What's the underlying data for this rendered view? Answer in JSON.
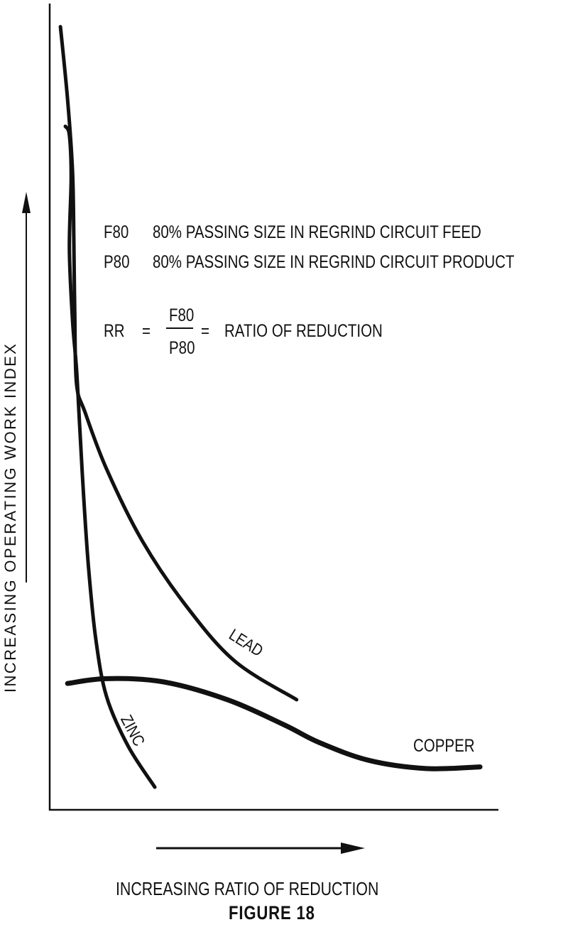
{
  "chart_data": {
    "type": "line",
    "title": "",
    "caption": "FIGURE 18",
    "xlabel": "INCREASING RATIO OF REDUCTION",
    "ylabel": "INCREASING OPERATING WORK INDEX",
    "xlim": [
      0,
      100
    ],
    "ylim": [
      0,
      100
    ],
    "axis_ticks": "none",
    "grid": false,
    "legend_placement": "inline labels",
    "definitions": [
      {
        "term": "F80",
        "text": "80% PASSING SIZE IN REGRIND CIRCUIT FEED"
      },
      {
        "term": "P80",
        "text": "80% PASSING SIZE IN REGRIND CIRCUIT PRODUCT"
      }
    ],
    "formula": {
      "lhs": "RR",
      "eq1": "=",
      "numerator": "F80",
      "denominator": "P80",
      "eq2": "=",
      "rhs": "RATIO OF REDUCTION"
    },
    "series": [
      {
        "name": "LEAD",
        "color": "#111111",
        "points": [
          [
            2.4,
            96.7
          ],
          [
            4,
            87.7
          ],
          [
            5.1,
            78.9
          ],
          [
            5.4,
            70.2
          ],
          [
            5.6,
            61.4
          ],
          [
            6,
            52.6
          ],
          [
            7.9,
            49.1
          ],
          [
            12.7,
            42.1
          ],
          [
            20.6,
            33.3
          ],
          [
            30.2,
            25.4
          ],
          [
            41.3,
            18.4
          ],
          [
            55.2,
            13.6
          ]
        ]
      },
      {
        "name": "ZINC",
        "color": "#111111",
        "points": [
          [
            3.5,
            84.4
          ],
          [
            4.4,
            83.3
          ],
          [
            4.8,
            78.1
          ],
          [
            4.4,
            69.3
          ],
          [
            5.1,
            60.5
          ],
          [
            6,
            54.4
          ],
          [
            6.7,
            47.4
          ],
          [
            7.6,
            38.6
          ],
          [
            8.7,
            29.8
          ],
          [
            10.3,
            21.1
          ],
          [
            12.7,
            14
          ],
          [
            17.5,
            7.9
          ],
          [
            23.5,
            2.8
          ]
        ]
      },
      {
        "name": "COPPER",
        "color": "#111111",
        "points": [
          [
            4,
            15.6
          ],
          [
            12.7,
            16.2
          ],
          [
            25.4,
            15.8
          ],
          [
            39.7,
            13.6
          ],
          [
            52.4,
            10.5
          ],
          [
            60.3,
            8.3
          ],
          [
            71.4,
            6.1
          ],
          [
            84.1,
            5.1
          ],
          [
            96.2,
            5.3
          ]
        ]
      }
    ]
  }
}
